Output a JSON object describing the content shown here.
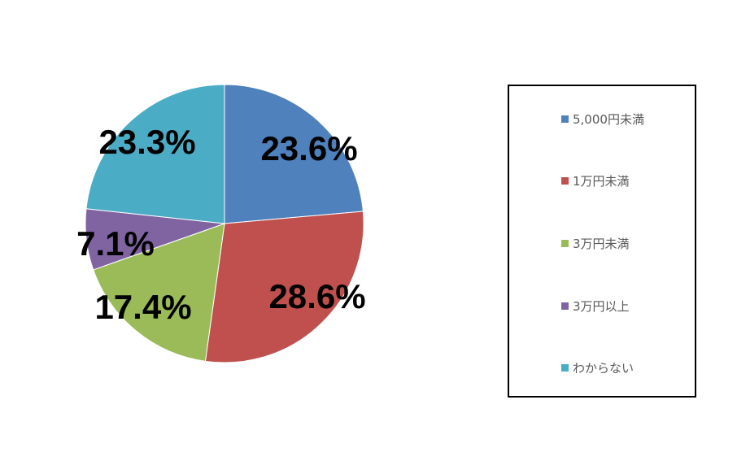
{
  "chart_data": {
    "type": "pie",
    "categories": [
      "5,000円未満",
      "1万円未満",
      "3万円未満",
      "3万円以上",
      "わからない"
    ],
    "values": [
      23.6,
      28.6,
      17.4,
      7.1,
      23.3
    ],
    "labels": [
      "23.6%",
      "28.6%",
      "17.4%",
      "7.1%",
      "23.3%"
    ],
    "colors": [
      "#4F81BD",
      "#C0504D",
      "#9BBB59",
      "#8064A2",
      "#4BACC6"
    ],
    "start": "12 o'clock",
    "direction": "clockwise",
    "legend_position": "right"
  }
}
